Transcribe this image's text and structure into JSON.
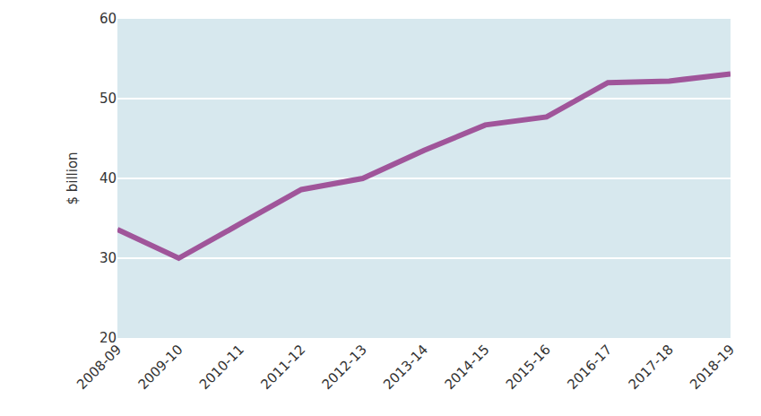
{
  "chart_data": {
    "type": "line",
    "y_label": "$ billion",
    "categories": [
      "2008-09",
      "2009-10",
      "2010-11",
      "2011-12",
      "2012-13",
      "2013-14",
      "2014-15",
      "2015-16",
      "2016-17",
      "2017-18",
      "2018-19"
    ],
    "values": [
      33.6,
      30.0,
      34.3,
      38.6,
      40.0,
      43.5,
      46.7,
      47.7,
      52.0,
      52.2,
      53.1
    ],
    "color": "#a0559a",
    "ylim": [
      20,
      60
    ],
    "yticks": [
      20,
      30,
      40,
      50,
      60
    ],
    "grid": true
  }
}
